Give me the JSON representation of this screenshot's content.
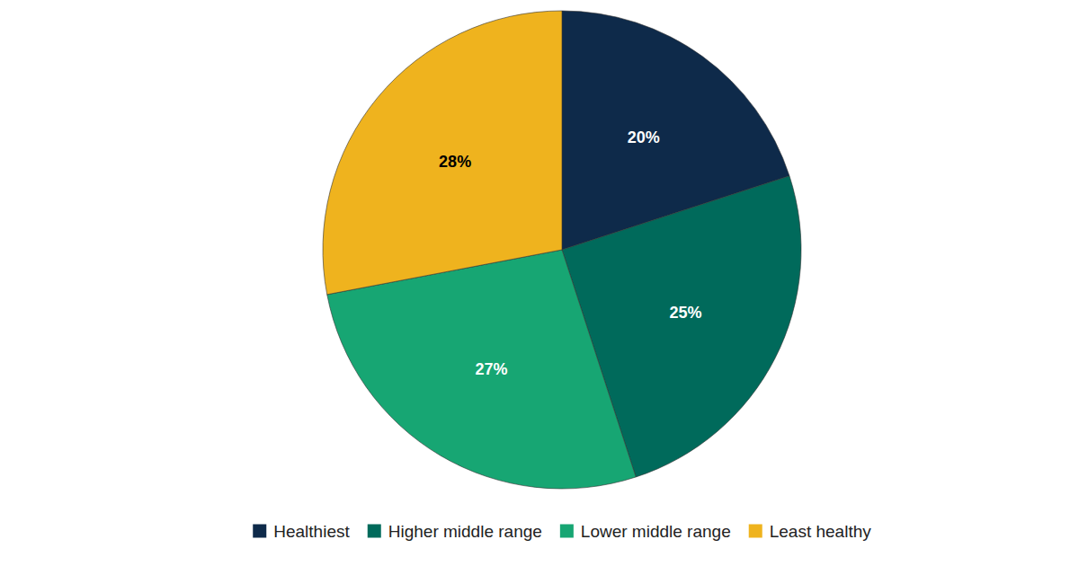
{
  "chart_data": {
    "type": "pie",
    "categories": [
      "Healthiest",
      "Higher middle range",
      "Lower middle range",
      "Least healthy"
    ],
    "values": [
      20,
      25,
      27,
      28
    ],
    "value_labels": [
      "20%",
      "25%",
      "27%",
      "28%"
    ],
    "colors": [
      "#0e2a4a",
      "#006a5b",
      "#17a673",
      "#efb31e"
    ],
    "data_labels": true,
    "legend": "bottom"
  }
}
